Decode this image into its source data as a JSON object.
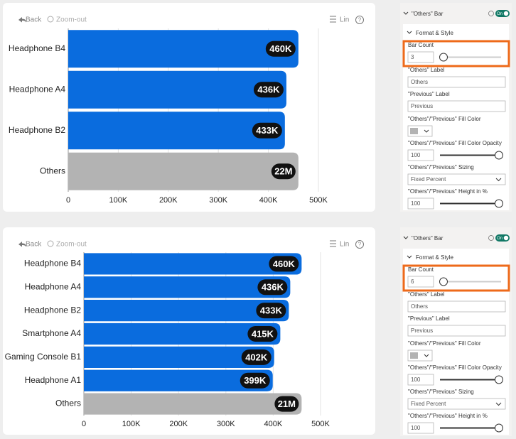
{
  "chart_data": [
    {
      "type": "bar",
      "orientation": "horizontal",
      "categories": [
        "Headphone B4",
        "Headphone A4",
        "Headphone B2",
        "Others"
      ],
      "values": [
        460000,
        436000,
        433000,
        22000000
      ],
      "value_labels": [
        "460K",
        "436K",
        "433K",
        "22M"
      ],
      "color": "#0a6cde",
      "others_color": "#b3b3b3",
      "xlim": [
        0,
        500000
      ],
      "xticks": [
        0,
        {
          "value": 100000,
          "label": "100K"
        },
        {
          "value": 200000,
          "label": "200K"
        },
        {
          "value": 300000,
          "label": "300K"
        },
        {
          "value": 400000,
          "label": "400K"
        },
        {
          "value": 500000,
          "label": "500K"
        }
      ],
      "grid": true
    },
    {
      "type": "bar",
      "orientation": "horizontal",
      "categories": [
        "Headphone B4",
        "Headphone A4",
        "Headphone B2",
        "Smartphone A4",
        "Gaming Console B1",
        "Headphone A1",
        "Others"
      ],
      "values": [
        460000,
        436000,
        433000,
        415000,
        402000,
        399000,
        21000000
      ],
      "value_labels": [
        "460K",
        "436K",
        "433K",
        "415K",
        "402K",
        "399K",
        "21M"
      ],
      "color": "#0a6cde",
      "others_color": "#b3b3b3",
      "xlim": [
        0,
        500000
      ],
      "xticks": [
        0,
        {
          "value": 100000,
          "label": "100K"
        },
        {
          "value": 200000,
          "label": "200K"
        },
        {
          "value": 300000,
          "label": "300K"
        },
        {
          "value": 400000,
          "label": "400K"
        },
        {
          "value": 500000,
          "label": "500K"
        }
      ],
      "grid": true
    }
  ],
  "toolbars": [
    {
      "back": "Back",
      "zoom_out": "Zoom-out",
      "scale": "Lin",
      "help": "?"
    },
    {
      "back": "Back",
      "zoom_out": "Zoom-out",
      "scale": "Lin",
      "help": "?"
    }
  ],
  "panels": [
    {
      "title": "\"Others\" Bar",
      "toggle": "On",
      "section": "Format & Style",
      "bar_count_title": "Bar Count",
      "bar_count": 3,
      "others_label_title": "\"Others\" Label",
      "others_label": "Others",
      "previous_label_title": "\"Previous\" Label",
      "previous_label": "Previous",
      "fill_color_title": "\"Others\"/\"Previous\" Fill Color",
      "opacity_title": "\"Others\"/\"Previous\" Fill Color Opacity",
      "opacity": 100,
      "sizing_title": "\"Others\"/\"Previous\" Sizing",
      "sizing": "Fixed Percent",
      "height_title": "\"Others\"/\"Previous\" Height in %",
      "height": 100
    },
    {
      "title": "\"Others\" Bar",
      "toggle": "On",
      "section": "Format & Style",
      "bar_count_title": "Bar Count",
      "bar_count": 6,
      "others_label_title": "\"Others\" Label",
      "others_label": "Others",
      "previous_label_title": "\"Previous\" Label",
      "previous_label": "Previous",
      "fill_color_title": "\"Others\"/\"Previous\" Fill Color",
      "opacity_title": "\"Others\"/\"Previous\" Fill Color Opacity",
      "opacity": 100,
      "sizing_title": "\"Others\"/\"Previous\" Sizing",
      "sizing": "Fixed Percent",
      "height_title": "\"Others\"/\"Previous\" Height in %",
      "height": 100
    }
  ]
}
